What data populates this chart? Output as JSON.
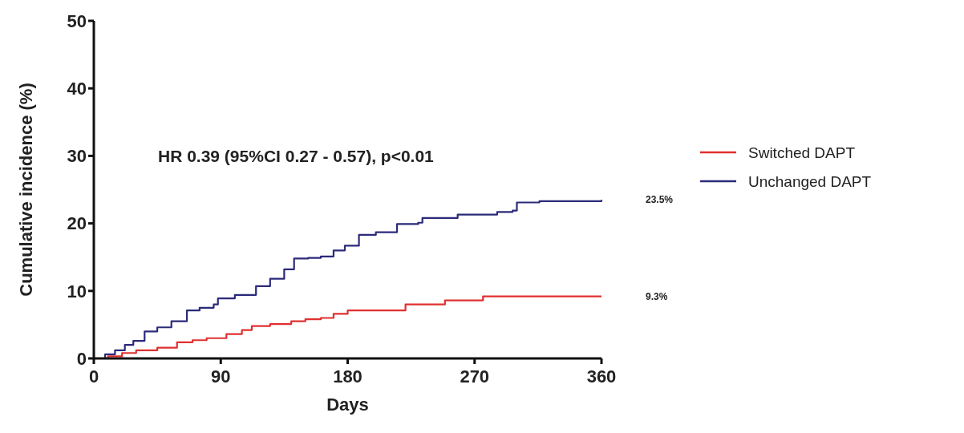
{
  "chart_data": {
    "type": "step",
    "xlabel": "Days",
    "ylabel": "Cumulative incidence (%)",
    "xlim": [
      0,
      360
    ],
    "ylim": [
      0,
      50
    ],
    "xticks": [
      0,
      90,
      180,
      270,
      360
    ],
    "yticks": [
      0,
      10,
      20,
      30,
      40,
      50
    ],
    "grid": false,
    "legend": "right",
    "marker": "none",
    "line_style": "solid",
    "annotations": [
      "HR 0.39 (95%CI 0.27 - 0.57), p<0.01",
      "23.5%",
      "9.3%"
    ],
    "series": [
      {
        "name": "Switched DAPT",
        "color": "#e03030",
        "x": [
          0,
          10,
          20,
          30,
          45,
          59,
          70,
          80,
          94,
          105,
          112,
          125,
          140,
          150,
          161,
          170,
          180,
          218,
          221,
          244,
          249,
          272,
          276,
          360
        ],
        "values": [
          0,
          0.3,
          0.8,
          1.2,
          1.6,
          2.4,
          2.7,
          3.0,
          3.6,
          4.2,
          4.8,
          5.1,
          5.5,
          5.8,
          6.0,
          6.6,
          7.1,
          7.1,
          8.0,
          8.0,
          8.6,
          8.6,
          9.2,
          9.2
        ]
      },
      {
        "name": "Unchanged DAPT",
        "color": "#2b2a7a",
        "x": [
          0,
          8,
          15,
          22,
          28,
          36,
          45,
          55,
          66,
          75,
          85,
          88,
          100,
          115,
          125,
          135,
          142,
          152,
          161,
          170,
          178,
          188,
          200,
          215,
          230,
          233,
          258,
          286,
          297,
          300,
          316,
          360
        ],
        "values": [
          0,
          0.6,
          1.2,
          2.0,
          2.6,
          4.0,
          4.6,
          5.5,
          7.1,
          7.5,
          8.0,
          8.9,
          9.4,
          10.7,
          11.8,
          13.2,
          14.8,
          14.9,
          15.1,
          16.0,
          16.7,
          18.3,
          18.7,
          19.9,
          20.1,
          20.8,
          21.3,
          21.7,
          21.9,
          23.1,
          23.3,
          23.5
        ]
      }
    ]
  }
}
